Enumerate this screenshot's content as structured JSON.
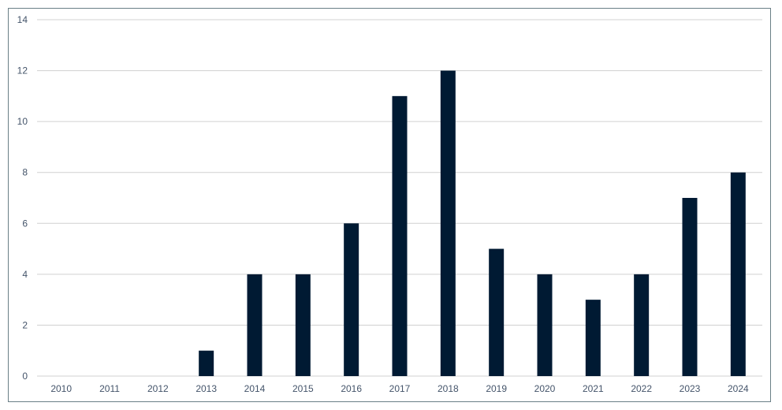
{
  "chart_data": {
    "type": "bar",
    "title": "",
    "xlabel": "",
    "ylabel": "",
    "categories": [
      "2010",
      "2011",
      "2012",
      "2013",
      "2014",
      "2015",
      "2016",
      "2017",
      "2018",
      "2019",
      "2020",
      "2021",
      "2022",
      "2023",
      "2024"
    ],
    "values": [
      0,
      0,
      0,
      1,
      4,
      4,
      6,
      11,
      12,
      5,
      4,
      3,
      4,
      7,
      8
    ],
    "ylim": [
      0,
      14
    ],
    "yticks": [
      0,
      2,
      4,
      6,
      8,
      10,
      12,
      14
    ],
    "grid": true,
    "legend": "none",
    "colors": {
      "bar": "#001a33",
      "grid": "#d0d0d0",
      "frame": "#6a7f86",
      "text": "#44546a"
    }
  }
}
